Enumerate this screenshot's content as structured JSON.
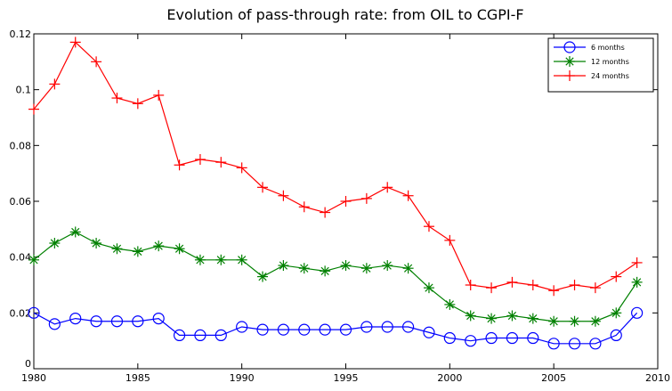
{
  "chart_data": {
    "type": "line",
    "title": "Evolution of pass-through rate: from OIL to CGPI-F",
    "x": [
      1980,
      1981,
      1982,
      1983,
      1984,
      1985,
      1986,
      1987,
      1988,
      1989,
      1990,
      1991,
      1992,
      1993,
      1994,
      1995,
      1996,
      1997,
      1998,
      1999,
      2000,
      2001,
      2002,
      2003,
      2004,
      2005,
      2006,
      2007,
      2008,
      2009
    ],
    "series": [
      {
        "name": "6 months",
        "color": "#0000ff",
        "marker": "circle",
        "values": [
          0.02,
          0.016,
          0.018,
          0.017,
          0.017,
          0.017,
          0.018,
          0.012,
          0.012,
          0.012,
          0.015,
          0.014,
          0.014,
          0.014,
          0.014,
          0.014,
          0.015,
          0.015,
          0.015,
          0.013,
          0.011,
          0.01,
          0.011,
          0.011,
          0.011,
          0.009,
          0.009,
          0.009,
          0.012,
          0.02
        ]
      },
      {
        "name": "12 months",
        "color": "#008000",
        "marker": "asterisk",
        "values": [
          0.039,
          0.045,
          0.049,
          0.045,
          0.043,
          0.042,
          0.044,
          0.043,
          0.039,
          0.039,
          0.039,
          0.033,
          0.037,
          0.036,
          0.035,
          0.037,
          0.036,
          0.037,
          0.036,
          0.029,
          0.023,
          0.019,
          0.018,
          0.019,
          0.018,
          0.017,
          0.017,
          0.017,
          0.02,
          0.031
        ]
      },
      {
        "name": "24 months",
        "color": "#ff0000",
        "marker": "plus",
        "values": [
          0.093,
          0.102,
          0.117,
          0.11,
          0.097,
          0.095,
          0.098,
          0.073,
          0.075,
          0.074,
          0.072,
          0.065,
          0.062,
          0.058,
          0.056,
          0.06,
          0.061,
          0.065,
          0.062,
          0.051,
          0.046,
          0.03,
          0.029,
          0.031,
          0.03,
          0.028,
          0.03,
          0.029,
          0.033,
          0.038
        ]
      }
    ],
    "xlim": [
      1980,
      2010
    ],
    "xticks": [
      1980,
      1985,
      1990,
      1995,
      2000,
      2005,
      2010
    ],
    "ylim": [
      0,
      0.12
    ],
    "yticks": [
      0,
      0.02,
      0.04,
      0.06,
      0.08,
      0.1,
      0.12
    ],
    "legend": "upper right"
  }
}
